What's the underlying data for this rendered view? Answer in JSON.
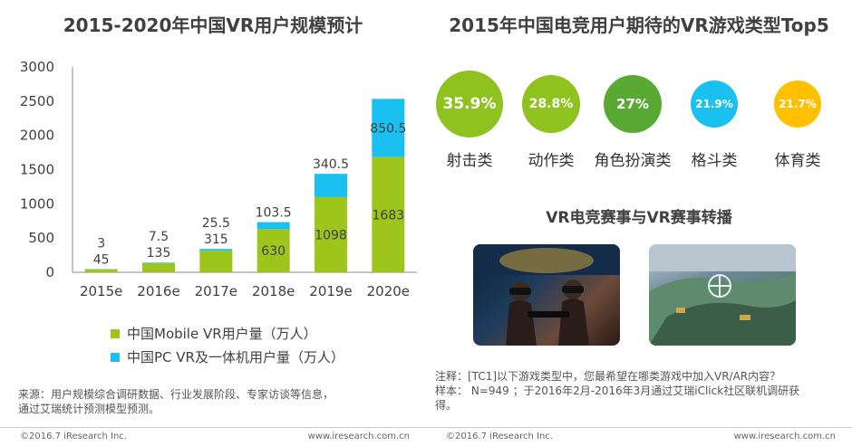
{
  "left": {
    "title": "2015-2020年中国VR用户规模预计",
    "legend": {
      "mobile": "中国Mobile VR用户量（万人）",
      "pc": "中国PC VR及一体机用户量（万人）"
    },
    "source_line1": "来源：用户规模综合调研数据、行业发展阶段、专家访谈等信息，",
    "source_line2": "通过艾瑞统计预测模型预测。",
    "footer_copyright": "©2016.7 iResearch Inc.",
    "footer_site": "www.iresearch.com.cn"
  },
  "chart_data": {
    "type": "bar",
    "stacked": true,
    "categories": [
      "2015e",
      "2016e",
      "2017e",
      "2018e",
      "2019e",
      "2020e"
    ],
    "series": [
      {
        "name": "中国Mobile VR用户量（万人）",
        "values": [
          45,
          135,
          315,
          630,
          1098,
          1683
        ],
        "color": "#9dc51c"
      },
      {
        "name": "中国PC VR及一体机用户量（万人）",
        "values": [
          3,
          7.5,
          25.5,
          103.5,
          340.5,
          850.5
        ],
        "color": "#19c0f0"
      }
    ],
    "y_ticks": [
      "0",
      "500",
      "1000",
      "1500",
      "2000",
      "2500",
      "3000"
    ],
    "ylim": [
      0,
      3000
    ],
    "grid": false,
    "legend_position": "bottom"
  },
  "right": {
    "title": "2015年中国电竞用户期待的VR游戏类型Top5",
    "circles": [
      {
        "value": "35.9%",
        "label": "射击类",
        "color": "#8ec21f"
      },
      {
        "value": "28.8%",
        "label": "动作类",
        "color": "#8ec21f"
      },
      {
        "value": "27%",
        "label": "角色扮演类",
        "color": "#5aa935"
      },
      {
        "value": "21.9%",
        "label": "格斗类",
        "color": "#19c0f0"
      },
      {
        "value": "21.7%",
        "label": "体育类",
        "color": "#ffc000"
      }
    ],
    "subtitle": "VR电竞赛事与VR赛事转播",
    "note_line1": "注释：[TC1]以下游戏类型中，您最希望在哪类游戏中加入VR/AR内容？",
    "note_line2": "样本： N=949 ；于2016年2月-2016年3月通过艾瑞iClick社区联机调研获",
    "note_line3": "得。",
    "footer_copyright": "©2016.7 iResearch Inc.",
    "footer_site": "www.iresearch.com.cn"
  }
}
